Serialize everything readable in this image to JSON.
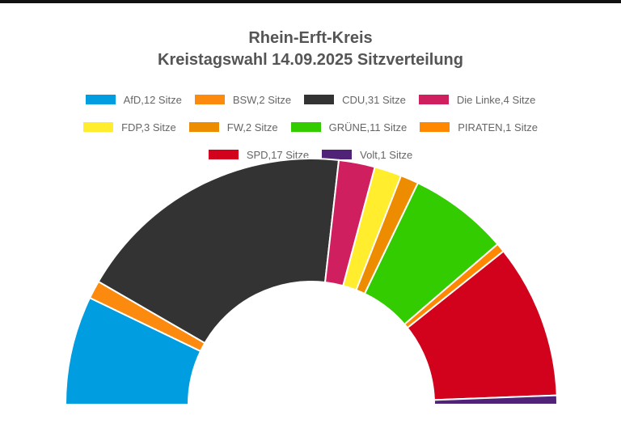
{
  "chart_data": {
    "type": "pie",
    "variant": "semicircle-donut",
    "title": "Rhein-Erft-Kreis",
    "subtitle": "Kreistagswahl 14.09.2025 Sitzverteilung",
    "legend_position": "top",
    "unit": "Sitze",
    "series": [
      {
        "name": "AfD",
        "value": 12,
        "color": "#009ee0",
        "label": "AfD,12 Sitze"
      },
      {
        "name": "BSW",
        "value": 2,
        "color": "#fb8a0e",
        "label": "BSW,2 Sitze"
      },
      {
        "name": "CDU",
        "value": 31,
        "color": "#333333",
        "label": "CDU,31 Sitze"
      },
      {
        "name": "Die Linke",
        "value": 4,
        "color": "#d01f5e",
        "label": "Die Linke,4 Sitze"
      },
      {
        "name": "FDP",
        "value": 3,
        "color": "#ffed2e",
        "label": "FDP,3 Sitze"
      },
      {
        "name": "FW",
        "value": 2,
        "color": "#ee8c00",
        "label": "FW,2 Sitze"
      },
      {
        "name": "GRÜNE",
        "value": 11,
        "color": "#33cc00",
        "label": "GRÜNE,11 Sitze"
      },
      {
        "name": "PIRATEN",
        "value": 1,
        "color": "#ff8800",
        "label": "PIRATEN,1 Sitze"
      },
      {
        "name": "SPD",
        "value": 17,
        "color": "#d2021c",
        "label": "SPD,17 Sitze"
      },
      {
        "name": "Volt",
        "value": 1,
        "color": "#502379",
        "label": "Volt,1 Sitze"
      }
    ]
  }
}
